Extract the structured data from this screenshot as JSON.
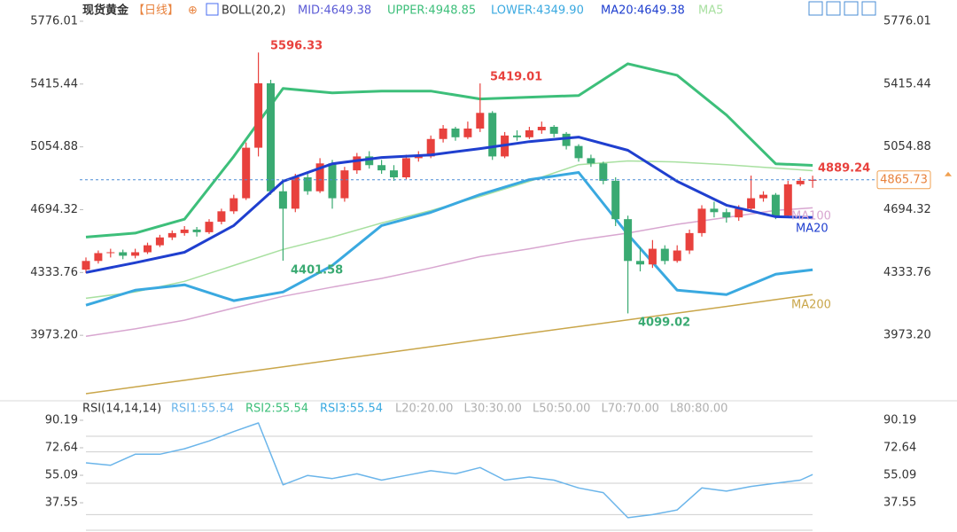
{
  "chart_data": [
    {
      "type": "candlestick",
      "title": "现货黄金",
      "period": "【日线】",
      "header_items": [
        {
          "text": "BOLL(20,2)",
          "color": "#333333"
        },
        {
          "text": "MID:4649.38",
          "color": "#5b5bd6"
        },
        {
          "text": "MA20:4649.38",
          "color": "#1f3fcf"
        }
      ],
      "up_color": "#e8413d",
      "down_color": "#3aaa72",
      "open": [
        4350,
        4400,
        4445,
        4450,
        4430,
        4450,
        4490,
        4535,
        4560,
        4580,
        4565,
        4625,
        4685,
        4760,
        5050,
        5420,
        4800,
        4700,
        4880,
        4800,
        4960,
        4760,
        4920,
        5000,
        4950,
        4920,
        4880,
        4990,
        5000,
        5100,
        5160,
        5110,
        5160,
        5250,
        5000,
        5120,
        5110,
        5150,
        5170,
        5130,
        5060,
        4990,
        4960,
        4860,
        4640,
        4400,
        4380,
        4470,
        4400,
        4460,
        4560,
        4700,
        4680,
        4650,
        4700,
        4760,
        4780,
        4660,
        4840,
        4860
      ],
      "high": [
        4420,
        4460,
        4470,
        4465,
        4470,
        4505,
        4550,
        4575,
        4600,
        4595,
        4640,
        4700,
        4780,
        5080,
        5596.33,
        5440,
        4850,
        4900,
        4910,
        4990,
        4980,
        4940,
        5020,
        5030,
        4980,
        4950,
        5010,
        5030,
        5120,
        5180,
        5170,
        5200,
        5419.01,
        5260,
        5140,
        5150,
        5170,
        5200,
        5180,
        5140,
        5070,
        5010,
        4970,
        4880,
        4660,
        4480,
        4520,
        4490,
        4490,
        4580,
        4720,
        4740,
        4700,
        4720,
        4890,
        4800,
        4790,
        4860,
        4880,
        4889.24
      ],
      "low": [
        4330,
        4385,
        4420,
        4410,
        4415,
        4440,
        4480,
        4520,
        4545,
        4540,
        4555,
        4610,
        4670,
        4750,
        5000,
        4780,
        4401.58,
        4680,
        4780,
        4790,
        4700,
        4740,
        4900,
        4930,
        4900,
        4860,
        4870,
        4970,
        4990,
        5080,
        5090,
        5100,
        5140,
        4980,
        4990,
        5090,
        5100,
        5130,
        5110,
        5040,
        4970,
        4940,
        4840,
        4600,
        4099.02,
        4340,
        4360,
        4380,
        4390,
        4440,
        4540,
        4650,
        4620,
        4630,
        4690,
        4740,
        4640,
        4650,
        4830,
        4820
      ],
      "close": [
        4400,
        4445,
        4450,
        4430,
        4450,
        4490,
        4535,
        4560,
        4580,
        4565,
        4625,
        4685,
        4760,
        5050,
        5420,
        4800,
        4700,
        4880,
        4800,
        4960,
        4760,
        4920,
        5000,
        4950,
        4920,
        4880,
        4990,
        5000,
        5100,
        5160,
        5110,
        5160,
        5250,
        5000,
        5120,
        5110,
        5150,
        5170,
        5130,
        5060,
        4990,
        4960,
        4860,
        4640,
        4400,
        4380,
        4470,
        4400,
        4460,
        4560,
        4700,
        4680,
        4650,
        4700,
        4760,
        4780,
        4660,
        4840,
        4860,
        4865.73
      ],
      "series": [
        {
          "name": "UPPER:4948.85",
          "color": "#3dbf7a",
          "width": 3,
          "x": [
            0,
            4,
            8,
            12,
            16,
            20,
            24,
            28,
            32,
            36,
            40,
            44,
            48,
            52,
            56,
            59
          ],
          "values": [
            4537,
            4560,
            4640,
            5000,
            5390,
            5365,
            5375,
            5375,
            5330,
            5340,
            5350,
            5532,
            5466,
            5238,
            4958,
            4948.85
          ]
        },
        {
          "name": "MA20",
          "color": "#1f3fcf",
          "width": 3,
          "x": [
            0,
            4,
            8,
            12,
            16,
            20,
            24,
            28,
            32,
            36,
            40,
            44,
            48,
            52,
            56,
            59
          ],
          "values": [
            4334,
            4390,
            4450,
            4603,
            4857,
            4958,
            4994,
            5009,
            5045,
            5085,
            5111,
            5035,
            4857,
            4720,
            4654,
            4649.38
          ]
        },
        {
          "name": "LOWER:4349.90",
          "color": "#3aa9e0",
          "width": 3,
          "x": [
            0,
            4,
            8,
            12,
            16,
            20,
            24,
            28,
            32,
            36,
            40,
            44,
            48,
            52,
            56,
            59
          ],
          "values": [
            4146,
            4232,
            4263,
            4172,
            4222,
            4374,
            4603,
            4679,
            4781,
            4867,
            4908,
            4552,
            4232,
            4207,
            4324,
            4349.9
          ]
        },
        {
          "name": "MA5",
          "color": "#a8e0a0",
          "width": 1.5,
          "x": [
            0,
            4,
            8,
            12,
            16,
            20,
            24,
            28,
            32,
            36,
            40,
            44,
            48,
            52,
            56,
            59
          ],
          "values": [
            4186,
            4222,
            4283,
            4374,
            4466,
            4537,
            4618,
            4689,
            4770,
            4857,
            4953,
            4974,
            4968,
            4953,
            4933,
            4918
          ]
        },
        {
          "name": "MA100",
          "color": "#d8a6d0",
          "width": 1.5,
          "x": [
            0,
            4,
            8,
            12,
            16,
            20,
            24,
            28,
            32,
            36,
            40,
            44,
            48,
            52,
            56,
            59
          ],
          "values": [
            3968,
            4010,
            4060,
            4130,
            4197,
            4250,
            4300,
            4360,
            4425,
            4470,
            4520,
            4560,
            4610,
            4650,
            4690,
            4705
          ]
        },
        {
          "name": "MA200",
          "color": "#c9a64a",
          "width": 1.5,
          "x": [
            0,
            4,
            8,
            12,
            16,
            20,
            24,
            28,
            32,
            36,
            40,
            44,
            48,
            52,
            56,
            59
          ],
          "values": [
            3638,
            3677,
            3715,
            3754,
            3792,
            3831,
            3869,
            3908,
            3947,
            3985,
            4024,
            4062,
            4101,
            4139,
            4178,
            4207
          ]
        }
      ],
      "last_price": 4865.73,
      "ylim": [
        3607.6,
        5897.9
      ],
      "yticks": [
        5776.01,
        5415.44,
        5054.88,
        4694.32,
        4333.76,
        {
          "value": 3973.2,
          "label": "3973.20"
        }
      ]
    },
    {
      "type": "line",
      "title": "RSI(14,14,14)",
      "header_items": [
        {
          "text": "RSI2:55.54",
          "color": "#3dbf7a"
        },
        {
          "text": "RSI3:55.54",
          "color": "#3aa9e0"
        }
      ],
      "levels": [
        {
          "value": 20,
          "label": "L20:20.00"
        },
        {
          "value": 30,
          "label": "L30:30.00"
        },
        {
          "value": 50,
          "label": "L50:50.00"
        },
        {
          "value": 70,
          "label": "L70:70.00"
        },
        {
          "value": 80,
          "label": "L80:80.00"
        }
      ],
      "series": [
        {
          "name": "RSI1:55.54",
          "color": "#6bb5ea",
          "x": [
            0,
            2,
            4,
            6,
            8,
            10,
            12,
            14,
            16,
            18,
            20,
            22,
            24,
            26,
            28,
            30,
            32,
            34,
            36,
            38,
            40,
            42,
            44,
            46,
            48,
            50,
            52,
            54,
            56,
            58,
            59
          ],
          "values": [
            63,
            61.5,
            68.5,
            68.5,
            72,
            77,
            83,
            88.5,
            49,
            55,
            53,
            56,
            52,
            55,
            58,
            56,
            60,
            52,
            54,
            52,
            47,
            44,
            28,
            30,
            33,
            47,
            45,
            48,
            50,
            52,
            55.54
          ]
        }
      ],
      "ylim": [
        18.9,
        98.1
      ],
      "yticks": [
        90.19,
        72.64,
        55.09,
        37.55
      ]
    }
  ]
}
